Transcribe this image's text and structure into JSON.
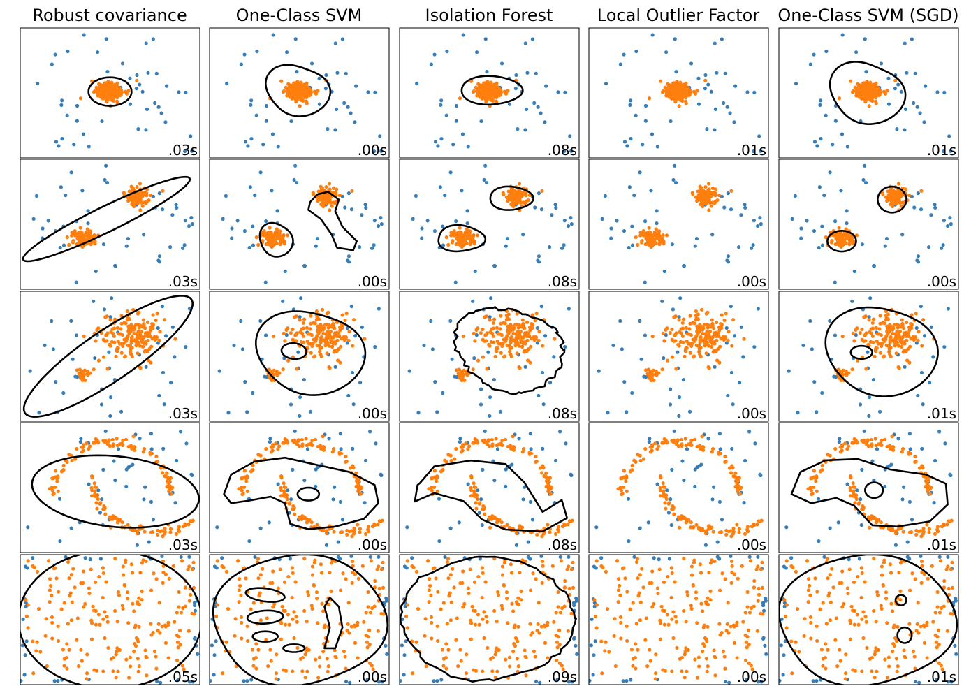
{
  "chart_data": {
    "type": "scatter",
    "grid": false,
    "legend": "none",
    "colors": {
      "inlier": "#ff7f0e",
      "outlier": "#377eb8",
      "boundary": "#000000"
    },
    "columns": [
      "Robust covariance",
      "One-Class SVM",
      "Isolation Forest",
      "Local Outlier Factor",
      "One-Class SVM (SGD)"
    ],
    "times": [
      [
        ".03s",
        ".00s",
        ".08s",
        ".01s",
        ".01s"
      ],
      [
        ".03s",
        ".00s",
        ".08s",
        ".00s",
        ".00s"
      ],
      [
        ".03s",
        ".00s",
        ".08s",
        ".00s",
        ".01s"
      ],
      [
        ".03s",
        ".00s",
        ".08s",
        ".00s",
        ".01s"
      ],
      [
        ".05s",
        ".00s",
        ".09s",
        ".00s",
        ".01s"
      ]
    ],
    "datasets": [
      "single blob",
      "two blobs",
      "two blobs of different density",
      "two moons",
      "uniform noise"
    ]
  }
}
